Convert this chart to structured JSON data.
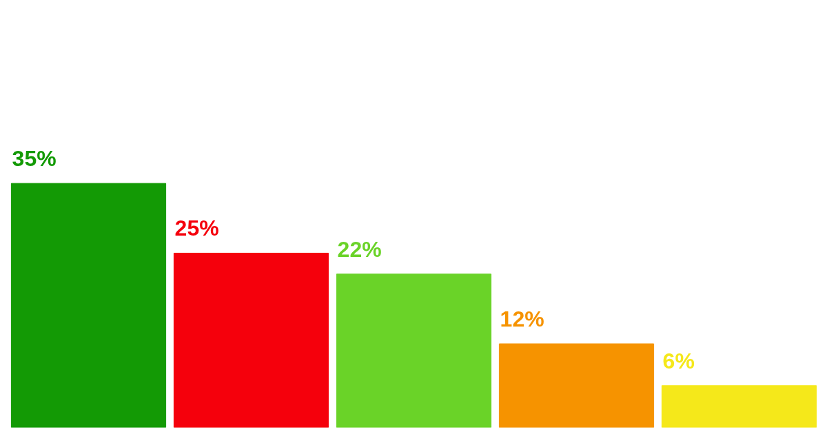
{
  "chart_data": {
    "type": "bar",
    "categories": [
      null,
      null,
      null,
      null,
      null
    ],
    "values": [
      35,
      25,
      22,
      12,
      6
    ],
    "colors": [
      "#139a05",
      "#f5000c",
      "#6ad328",
      "#f69300",
      "#f5e81a"
    ],
    "value_labels": [
      "35%",
      "25%",
      "22%",
      "12%",
      "6%"
    ],
    "grid": false,
    "tick_labels": false
  }
}
